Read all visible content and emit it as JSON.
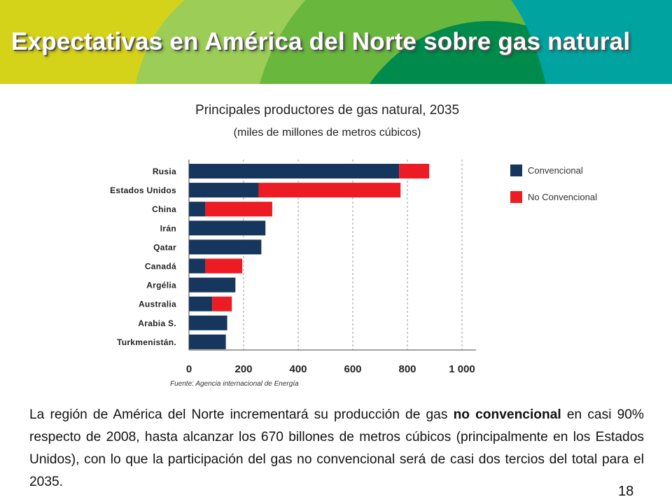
{
  "slide": {
    "title": "Expectativas en América del Norte sobre gas natural",
    "page_number": "18",
    "banner_colors": [
      "#d5d21a",
      "#9bcd57",
      "#6ab73e",
      "#008a4b",
      "#00a3a0"
    ]
  },
  "chart_data": {
    "type": "bar",
    "orientation": "horizontal",
    "stacked": true,
    "title": "Principales productores de gas natural, 2035",
    "subtitle": "(miles de millones de metros cúbicos)",
    "categories": [
      "Rusia",
      "Estados Unidos",
      "China",
      "Irán",
      "Qatar",
      "Canadá",
      "Argélia",
      "Australia",
      "Arabia S.",
      "Turkmenistán."
    ],
    "series": [
      {
        "name": "Convencional",
        "color": "#17365d",
        "values": [
          770,
          255,
          60,
          280,
          265,
          60,
          170,
          85,
          140,
          135
        ]
      },
      {
        "name": "No Convencional",
        "color": "#ed1c24",
        "values": [
          110,
          520,
          245,
          0,
          0,
          135,
          0,
          72,
          0,
          0
        ]
      }
    ],
    "xlim": [
      0,
      1000
    ],
    "xticks": [
      0,
      200,
      400,
      600,
      800,
      1000
    ],
    "xtick_labels": [
      "0",
      "200",
      "400",
      "600",
      "800",
      "1 000"
    ],
    "grid": "vertical dashed",
    "legend_position": "right",
    "source": "Fuente: Agencia internacional de Energía"
  },
  "body": {
    "before": "La región de América del Norte incrementará su producción de gas ",
    "bold": "no convencional",
    "after": " en casi 90% respecto de 2008, hasta alcanzar los 670 billones de metros cúbicos (principalmente en los Estados Unidos), con lo que la participación del gas no convencional será de casi dos tercios del total para el 2035."
  }
}
